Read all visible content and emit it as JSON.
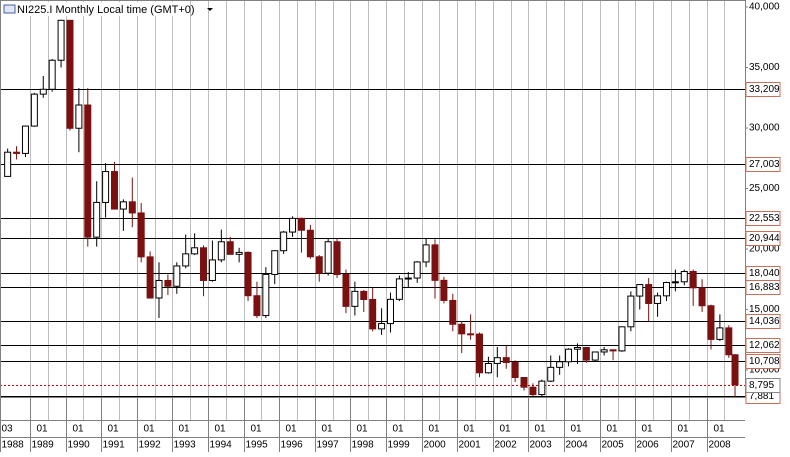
{
  "chart_data": {
    "type": "candlestick",
    "title": "NI225.I Monthly Local time (GMT+0)",
    "up_color": "#000000",
    "down_color": "#7a1010",
    "level_color": "#000000",
    "current_color": "#cc0000",
    "xlim": [
      1988.16,
      2009.08
    ],
    "ylim": [
      7769,
      40579
    ],
    "yticks": [
      {
        "value": 40000,
        "label": "40,000"
      },
      {
        "value": 35000,
        "label": "35,000"
      },
      {
        "value": 30000,
        "label": "30,000"
      },
      {
        "value": 25000,
        "label": "25,000"
      },
      {
        "value": 20000,
        "label": "20,000"
      },
      {
        "value": 15000,
        "label": "15,000"
      },
      {
        "value": 10000,
        "label": "10,000"
      }
    ],
    "xticks": [
      {
        "value": 1988.17,
        "label": "1988"
      },
      1989,
      1990,
      1991,
      1992,
      1993,
      1994,
      1995,
      1996,
      1997,
      1998,
      1999,
      2000,
      2001,
      2002,
      2003,
      2004,
      2005,
      2006,
      2007,
      2008
    ],
    "xtick_month_labels": [
      "03",
      "01",
      "01",
      "01",
      "01",
      "01",
      "01",
      "01",
      "01",
      "01",
      "01",
      "01",
      "01",
      "01",
      "01",
      "01",
      "01",
      "01",
      "01",
      "01",
      "01"
    ],
    "levels": [
      {
        "value": 33209,
        "label": "33,209"
      },
      {
        "value": 27003,
        "label": "27,003"
      },
      {
        "value": 22553,
        "label": "22,553"
      },
      {
        "value": 20944,
        "label": "20,944"
      },
      {
        "value": 18040,
        "label": "18,040"
      },
      {
        "value": 16883,
        "label": "16,883"
      },
      {
        "value": 14036,
        "label": "14,036"
      },
      {
        "value": 12062,
        "label": "12,062"
      },
      {
        "value": 10708,
        "label": "10,708"
      },
      {
        "value": 7881,
        "label": "7,881"
      }
    ],
    "current": {
      "value": 8795,
      "label": "8,795"
    },
    "x": [
      1988.375,
      1988.625,
      1988.875,
      1989.125,
      1989.375,
      1989.625,
      1989.875,
      1990.125,
      1990.375,
      1990.625,
      1990.875,
      1991.125,
      1991.375,
      1991.625,
      1991.875,
      1992.125,
      1992.375,
      1992.625,
      1992.875,
      1993.125,
      1993.375,
      1993.625,
      1993.875,
      1994.125,
      1994.375,
      1994.625,
      1994.875,
      1995.125,
      1995.375,
      1995.625,
      1995.875,
      1996.125,
      1996.375,
      1996.625,
      1996.875,
      1997.125,
      1997.375,
      1997.625,
      1997.875,
      1998.125,
      1998.375,
      1998.625,
      1998.875,
      1999.125,
      1999.375,
      1999.625,
      1999.875,
      2000.125,
      2000.375,
      2000.625,
      2000.875,
      2001.125,
      2001.375,
      2001.625,
      2001.875,
      2002.125,
      2002.375,
      2002.625,
      2002.875,
      2003.125,
      2003.375,
      2003.625,
      2003.875,
      2004.125,
      2004.375,
      2004.625,
      2004.875,
      2005.125,
      2005.375,
      2005.625,
      2005.875,
      2006.125,
      2006.375,
      2006.625,
      2006.875,
      2007.125,
      2007.375,
      2007.625,
      2007.875,
      2008.125,
      2008.375,
      2008.625,
      2008.8
    ],
    "open": [
      26000,
      28000,
      27900,
      30160,
      32800,
      33200,
      35600,
      38900,
      29980,
      31900,
      20980,
      23850,
      26400,
      23300,
      23900,
      22980,
      19350,
      15950,
      17400,
      16920,
      18600,
      19600,
      20100,
      17400,
      19100,
      20600,
      19560,
      19720,
      16140,
      14500,
      17900,
      19860,
      21400,
      22530,
      21550,
      19360,
      18000,
      20600,
      17890,
      15260,
      16500,
      15830,
      13400,
      13840,
      15840,
      17530,
      17600,
      18930,
      20340,
      17410,
      15750,
      13780,
      12990,
      12970,
      9770,
      10540,
      11020,
      10620,
      9380,
      8580,
      7970,
      9080,
      10220,
      10680,
      11720,
      11860,
      10820,
      11490,
      11670,
      11580,
      13570,
      16110,
      17060,
      15500,
      16130,
      17230,
      17290,
      18140,
      16790,
      15310,
      12530,
      13480,
      11260
    ],
    "high": [
      28300,
      28500,
      30200,
      32900,
      34300,
      35700,
      38950,
      38900,
      33300,
      33300,
      25600,
      27100,
      27200,
      24100,
      25900,
      23800,
      19800,
      18900,
      17900,
      18900,
      21200,
      21300,
      20300,
      20700,
      21600,
      21000,
      20100,
      19800,
      17300,
      18500,
      19900,
      21500,
      22700,
      22600,
      22000,
      19500,
      20900,
      20900,
      18300,
      17300,
      16600,
      16800,
      15100,
      16400,
      17800,
      18100,
      19000,
      20850,
      20800,
      17700,
      16300,
      14000,
      14600,
      13100,
      11100,
      11900,
      12000,
      10800,
      9400,
      8900,
      9200,
      11200,
      11200,
      11800,
      12200,
      11900,
      11500,
      11900,
      11700,
      13600,
      16500,
      17100,
      17600,
      16400,
      17300,
      18300,
      18300,
      18300,
      17500,
      15400,
      14600,
      13700,
      11300
    ],
    "low": [
      26000,
      27400,
      27600,
      30100,
      32500,
      33000,
      35000,
      29800,
      28000,
      20200,
      20200,
      22600,
      23300,
      21500,
      21800,
      18900,
      15900,
      14300,
      16200,
      16300,
      18400,
      19500,
      16100,
      17300,
      18900,
      19600,
      18900,
      15700,
      14300,
      14300,
      17100,
      19600,
      21000,
      19700,
      19200,
      17300,
      17800,
      17600,
      14700,
      14500,
      14800,
      13200,
      12900,
      13100,
      15700,
      16800,
      17200,
      18500,
      15900,
      15500,
      13200,
      11400,
      12500,
      9400,
      9700,
      9400,
      10100,
      9000,
      8300,
      7860,
      7600,
      9000,
      9600,
      10300,
      10500,
      10600,
      10700,
      11200,
      10800,
      11500,
      13200,
      15000,
      14000,
      14400,
      15700,
      16500,
      17000,
      15300,
      14800,
      11700,
      12400,
      11000,
      7160
    ],
    "close": [
      28000,
      27900,
      30160,
      32800,
      33200,
      35600,
      38900,
      29980,
      31900,
      20980,
      23850,
      26400,
      23300,
      23900,
      22980,
      19350,
      15950,
      17400,
      16920,
      18600,
      19600,
      20100,
      17400,
      19100,
      20600,
      19560,
      19720,
      16140,
      14500,
      17900,
      19860,
      21400,
      22530,
      21550,
      19360,
      18000,
      20600,
      17890,
      15260,
      16500,
      15830,
      13400,
      13840,
      15840,
      17530,
      17600,
      18930,
      20340,
      17410,
      15750,
      13780,
      12990,
      12970,
      9770,
      10540,
      11020,
      10620,
      9380,
      8580,
      7970,
      9080,
      10220,
      10680,
      11720,
      11860,
      10820,
      11490,
      11670,
      11580,
      13570,
      16110,
      17060,
      15500,
      16130,
      17230,
      17290,
      18140,
      16790,
      15310,
      12530,
      13480,
      11260,
      8795
    ]
  }
}
